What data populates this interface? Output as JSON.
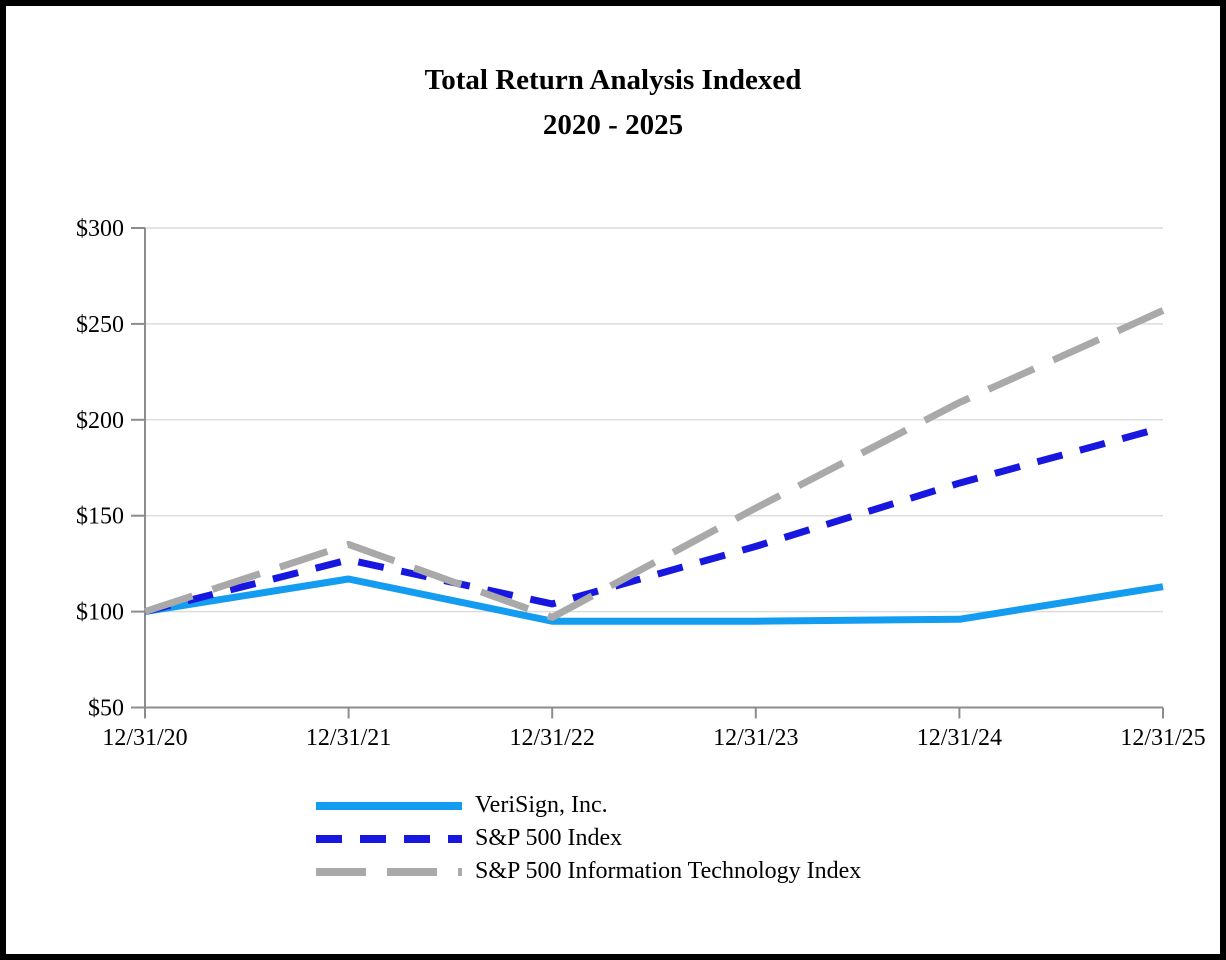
{
  "chart_data": {
    "type": "line",
    "title": "Total Return Analysis Indexed",
    "subtitle": "2020 - 2025",
    "x_labels": [
      "12/31/20",
      "12/31/21",
      "12/31/22",
      "12/31/23",
      "12/31/24",
      "12/31/25"
    ],
    "y_ticks": [
      {
        "label": "$300",
        "value": 300
      },
      {
        "label": "$250",
        "value": 250
      },
      {
        "label": "$200",
        "value": 200
      },
      {
        "label": "$150",
        "value": 150
      },
      {
        "label": "$100",
        "value": 100
      },
      {
        "label": "$50",
        "value": 50
      }
    ],
    "ylim": [
      50,
      300
    ],
    "grid": "horizontal-light",
    "legend_position": "bottom-left",
    "axis_color": "#8C8C8C",
    "grid_color": "#DCDCDC",
    "series": [
      {
        "name": "VeriSign, Inc.",
        "color": "#149CF0",
        "style": "solid",
        "values": [
          100,
          117,
          95,
          95,
          96,
          113
        ]
      },
      {
        "name": "S&P 500 Index",
        "color": "#1717DF",
        "style": "dashed",
        "values": [
          100,
          127,
          104,
          134,
          167,
          196
        ]
      },
      {
        "name": "S&P 500 Information Technology Index",
        "color": "#A9A9A9",
        "style": "long-dash",
        "values": [
          100,
          135,
          97,
          154,
          209,
          257
        ]
      }
    ]
  }
}
